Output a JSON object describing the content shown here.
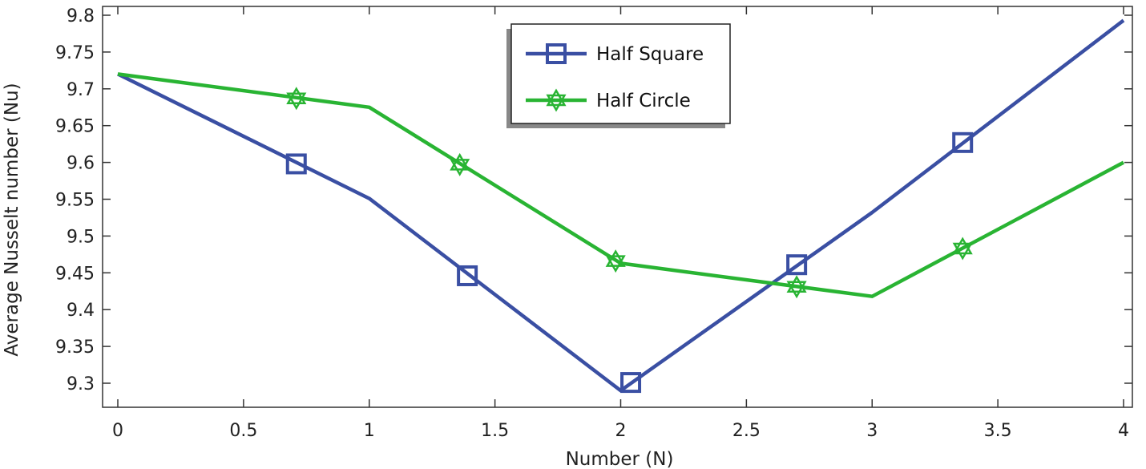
{
  "chart_data": {
    "type": "line",
    "xlabel": "Number (N)",
    "ylabel": "Average Nusselt number (Nu)",
    "xlim": [
      0,
      4
    ],
    "ylim": [
      9.265,
      9.81
    ],
    "xticks": [
      0,
      0.5,
      1,
      1.5,
      2,
      2.5,
      3,
      3.5,
      4
    ],
    "xtick_labels": [
      "0",
      "0.5",
      "1",
      "1.5",
      "2",
      "2.5",
      "3",
      "3.5",
      "4"
    ],
    "yticks": [
      9.3,
      9.35,
      9.4,
      9.45,
      9.5,
      9.55,
      9.6,
      9.65,
      9.7,
      9.75,
      9.8
    ],
    "ytick_labels": [
      "9.3",
      "9.35",
      "9.4",
      "9.45",
      "9.5",
      "9.55",
      "9.6",
      "9.65",
      "9.7",
      "9.75",
      "9.8"
    ],
    "grid": false,
    "legend_position": "top-center",
    "series": [
      {
        "name": "Half Square",
        "color": "#3a4fa3",
        "marker": "square",
        "x": [
          0,
          1,
          2,
          3,
          4
        ],
        "y": [
          9.72,
          9.551,
          9.29,
          9.532,
          9.793
        ],
        "marker_x": [
          0.71,
          1.39,
          2.04,
          2.7,
          3.36
        ],
        "marker_y": [
          9.598,
          9.446,
          9.301,
          9.461,
          9.627
        ]
      },
      {
        "name": "Half Circle",
        "color": "#29b433",
        "marker": "star",
        "x": [
          0,
          1,
          2,
          3,
          4
        ],
        "y": [
          9.72,
          9.675,
          9.463,
          9.418,
          9.6
        ],
        "marker_x": [
          0.71,
          1.36,
          1.98,
          2.7,
          3.36
        ],
        "marker_y": [
          9.687,
          9.597,
          9.466,
          9.431,
          9.483
        ]
      }
    ]
  }
}
